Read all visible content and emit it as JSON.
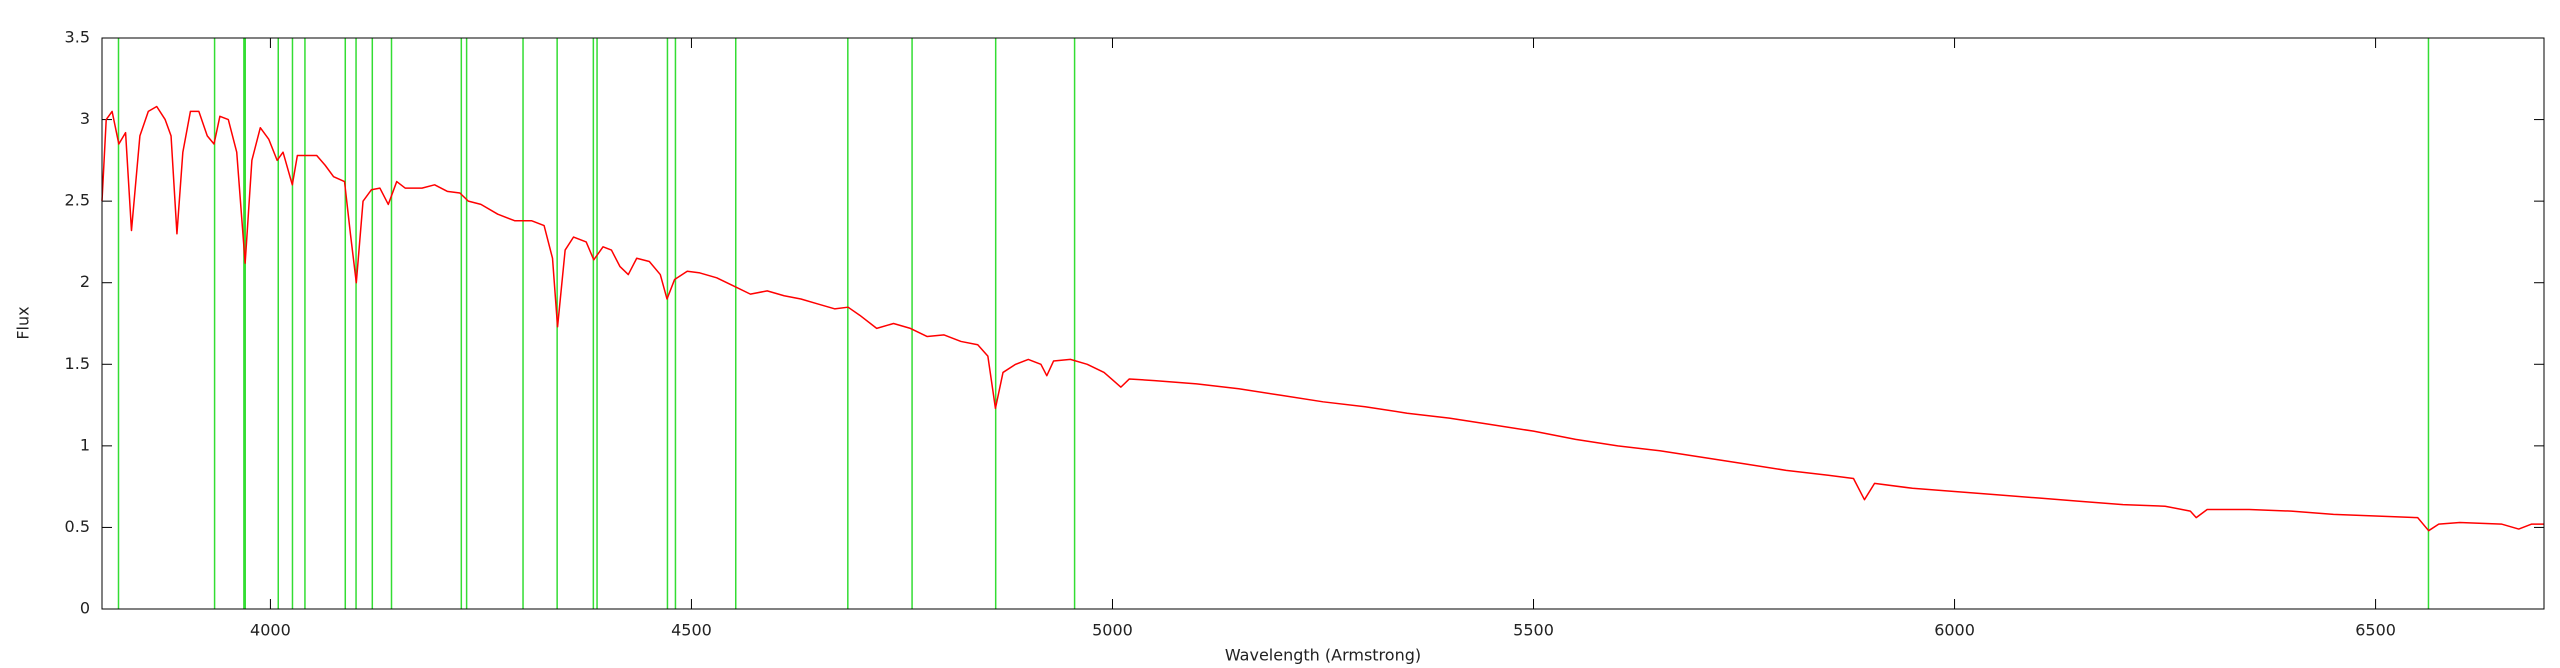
{
  "chart_data": {
    "type": "line",
    "xlabel": "Wavelength (Armstrong)",
    "ylabel": "Flux",
    "xlim": [
      3800,
      6700
    ],
    "ylim": [
      0,
      3.5
    ],
    "xticks": [
      4000,
      4500,
      5000,
      5500,
      6000,
      6500
    ],
    "yticks": [
      0,
      0.5,
      1,
      1.5,
      2,
      2.5,
      3,
      3.5
    ],
    "vlines": {
      "color": "#33dd33",
      "x": [
        3819.6,
        3933.7,
        3968.5,
        3970.1,
        4009.3,
        4026.2,
        4041,
        4088.9,
        4101.7,
        4121,
        4143.8,
        4226.7,
        4233,
        4300,
        4340.5,
        4383.5,
        4387.9,
        4471.5,
        4481,
        4552.6,
        4685.7,
        4762,
        4861.3,
        4955,
        6562.8
      ]
    },
    "x": [
      3800,
      3805,
      3812,
      3820,
      3828,
      3835,
      3845,
      3855,
      3865,
      3875,
      3882,
      3889,
      3896,
      3905,
      3915,
      3925,
      3933,
      3940,
      3950,
      3960,
      3970,
      3978,
      3988,
      3998,
      4008,
      4015,
      4026,
      4032,
      4045,
      4055,
      4065,
      4075,
      4088,
      4095,
      4102,
      4110,
      4120,
      4130,
      4140,
      4150,
      4160,
      4180,
      4195,
      4210,
      4225,
      4235,
      4250,
      4270,
      4290,
      4310,
      4325,
      4335,
      4341,
      4350,
      4360,
      4375,
      4384,
      4395,
      4405,
      4415,
      4425,
      4435,
      4450,
      4463,
      4471,
      4480,
      4495,
      4510,
      4530,
      4550,
      4570,
      4590,
      4610,
      4630,
      4650,
      4670,
      4686,
      4700,
      4720,
      4740,
      4760,
      4780,
      4800,
      4820,
      4840,
      4852,
      4861,
      4870,
      4885,
      4900,
      4915,
      4922,
      4930,
      4950,
      4970,
      4990,
      5010,
      5020,
      5050,
      5100,
      5150,
      5200,
      5250,
      5300,
      5350,
      5400,
      5450,
      5500,
      5550,
      5600,
      5650,
      5700,
      5750,
      5800,
      5850,
      5880,
      5893,
      5905,
      5950,
      6000,
      6050,
      6100,
      6150,
      6200,
      6250,
      6280,
      6287,
      6300,
      6350,
      6400,
      6450,
      6500,
      6550,
      6563,
      6575,
      6600,
      6650,
      6670,
      6685,
      6700
    ],
    "series": [
      {
        "color": "#ff0000",
        "values": [
          2.5,
          3.0,
          3.05,
          2.85,
          2.92,
          2.32,
          2.9,
          3.05,
          3.08,
          3.0,
          2.9,
          2.3,
          2.8,
          3.05,
          3.05,
          2.9,
          2.85,
          3.02,
          3.0,
          2.8,
          2.12,
          2.75,
          2.95,
          2.88,
          2.75,
          2.8,
          2.6,
          2.78,
          2.78,
          2.78,
          2.72,
          2.65,
          2.62,
          2.3,
          2.0,
          2.5,
          2.57,
          2.58,
          2.48,
          2.62,
          2.58,
          2.58,
          2.6,
          2.56,
          2.55,
          2.5,
          2.48,
          2.42,
          2.38,
          2.38,
          2.35,
          2.15,
          1.73,
          2.2,
          2.28,
          2.25,
          2.14,
          2.22,
          2.2,
          2.1,
          2.05,
          2.15,
          2.13,
          2.05,
          1.9,
          2.02,
          2.07,
          2.06,
          2.03,
          1.98,
          1.93,
          1.95,
          1.92,
          1.9,
          1.87,
          1.84,
          1.85,
          1.8,
          1.72,
          1.75,
          1.72,
          1.67,
          1.68,
          1.64,
          1.62,
          1.55,
          1.23,
          1.45,
          1.5,
          1.53,
          1.5,
          1.43,
          1.52,
          1.53,
          1.5,
          1.45,
          1.36,
          1.41,
          1.4,
          1.38,
          1.35,
          1.31,
          1.27,
          1.24,
          1.2,
          1.17,
          1.13,
          1.09,
          1.04,
          1.0,
          0.97,
          0.93,
          0.89,
          0.85,
          0.82,
          0.8,
          0.67,
          0.77,
          0.74,
          0.72,
          0.7,
          0.68,
          0.66,
          0.64,
          0.63,
          0.6,
          0.56,
          0.61,
          0.61,
          0.6,
          0.58,
          0.57,
          0.56,
          0.48,
          0.52,
          0.53,
          0.52,
          0.49,
          0.52,
          0.52
        ]
      }
    ]
  }
}
